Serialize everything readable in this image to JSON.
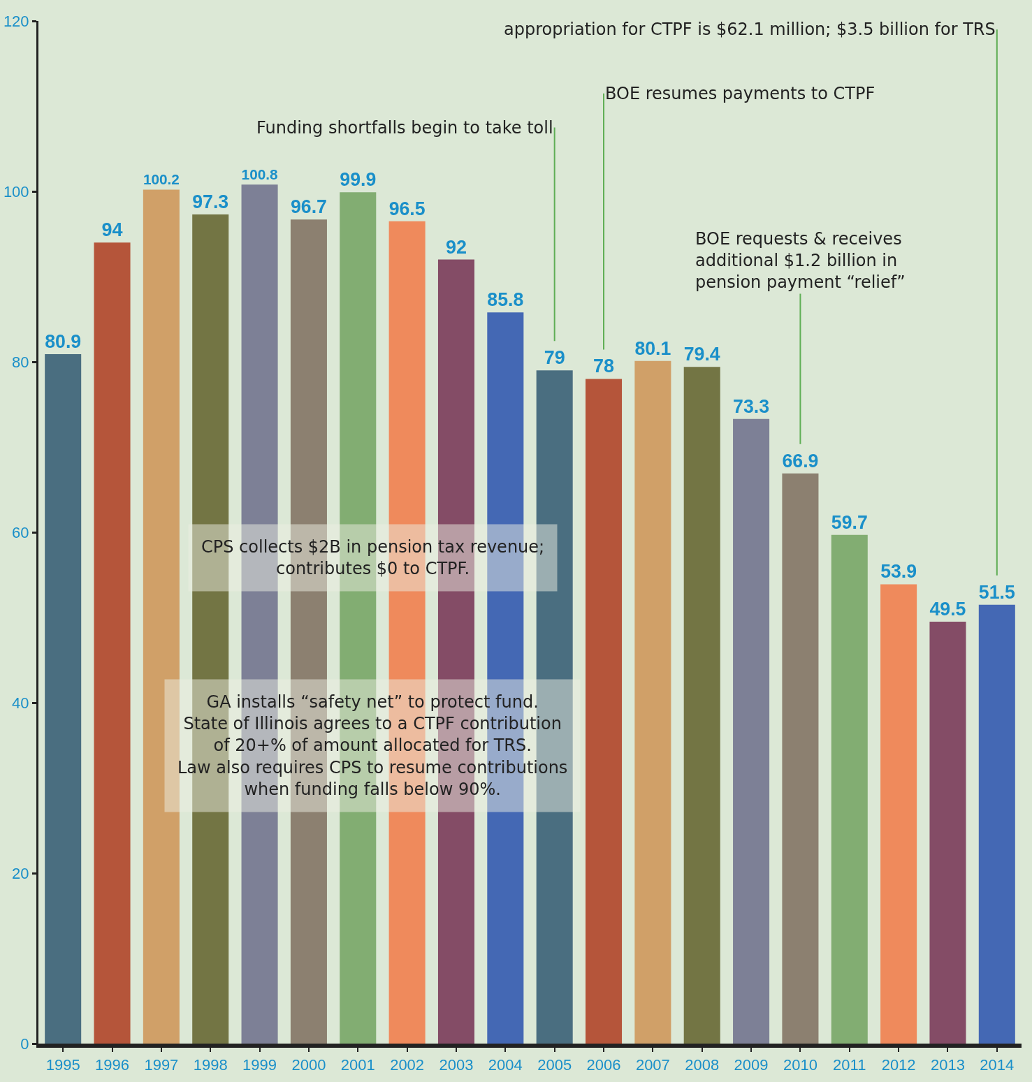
{
  "chart_data": {
    "type": "bar",
    "categories": [
      "1995",
      "1996",
      "1997",
      "1998",
      "1999",
      "2000",
      "2001",
      "2002",
      "2003",
      "2004",
      "2005",
      "2006",
      "2007",
      "2008",
      "2009",
      "2010",
      "2011",
      "2012",
      "2013",
      "2014"
    ],
    "values": [
      80.9,
      94,
      100.2,
      97.3,
      100.8,
      96.7,
      99.9,
      96.5,
      92,
      85.8,
      79,
      78,
      80.1,
      79.4,
      73.3,
      66.9,
      59.7,
      53.9,
      49.5,
      51.5
    ],
    "colors": [
      "#4a6e80",
      "#b5553a",
      "#d0a068",
      "#737544",
      "#7d8096",
      "#8c8070",
      "#82ad72",
      "#ef8a5c",
      "#844c66",
      "#4468b4",
      "#4a6e80",
      "#b5553a",
      "#d0a068",
      "#737544",
      "#7d8096",
      "#8c8070",
      "#82ad72",
      "#ef8a5c",
      "#844c66",
      "#4468b4"
    ],
    "data_labels": true,
    "grid": false,
    "legend": false,
    "ylim": [
      0,
      120
    ],
    "yticks": [
      0,
      20,
      40,
      60,
      80,
      100,
      120
    ],
    "annotations": [
      {
        "text": "Funding shortfalls begin to take toll",
        "x": "2005",
        "y": 79
      },
      {
        "text": "BOE resumes payments to CTPF",
        "x": "2006",
        "y": 78
      },
      {
        "text": "BOE requests & receives\nadditional $1.2 billion in\npension payment “relief”",
        "x": "2010",
        "y": 66.9
      },
      {
        "text": "appropriation for CTPF is $62.1 million; $3.5 billion for TRS",
        "x": "2014",
        "y": 51.5
      },
      "CPS collects $2B in pension tax revenue;\ncontributes $0 to CTPF.",
      "GA installs “safety net” to protect fund.\nState of Illinois agrees to a CTPF contribution\nof 20+% of amount allocated for TRS.\nLaw also requires CPS to resume contributions\nwhen funding falls below 90%."
    ]
  }
}
